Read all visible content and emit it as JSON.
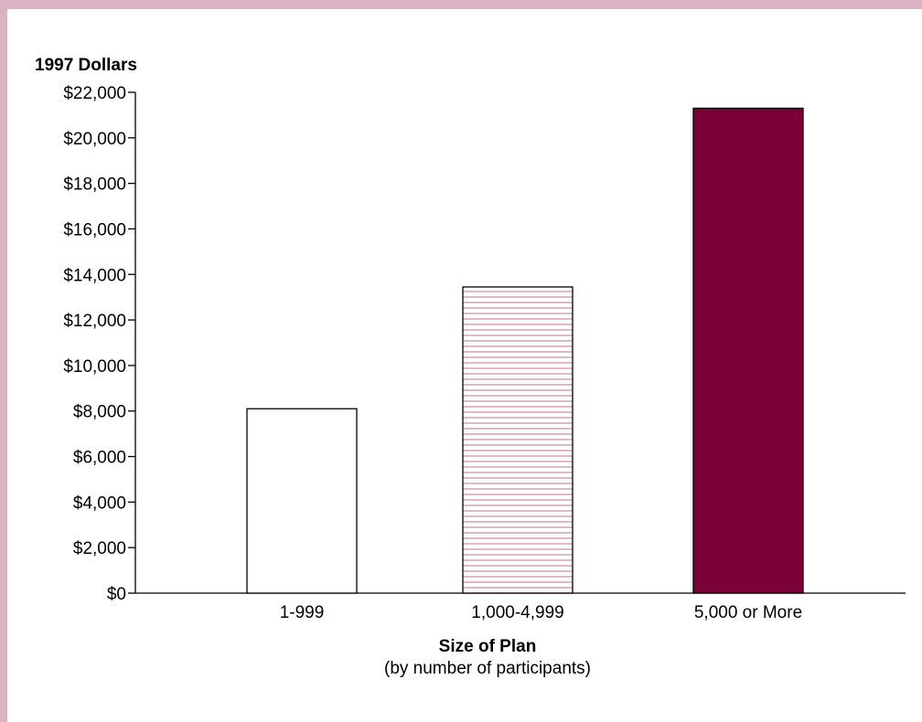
{
  "chart_data": {
    "type": "bar",
    "ylabel": "1997 Dollars",
    "xlabel": "Size of Plan",
    "xlabel_sub": "(by number of participants)",
    "categories": [
      "1-999",
      "1,000-4,999",
      "5,000 or More"
    ],
    "values": [
      8100,
      13450,
      21300
    ],
    "ylim": [
      0,
      22000
    ],
    "yticks": [
      0,
      2000,
      4000,
      6000,
      8000,
      10000,
      12000,
      14000,
      16000,
      18000,
      20000,
      22000
    ],
    "ytick_labels": [
      "$0",
      "$2,000",
      "$4,000",
      "$6,000",
      "$8,000",
      "$10,000",
      "$12,000",
      "$14,000",
      "$16,000",
      "$18,000",
      "$20,000",
      "$22,000"
    ],
    "bar_styles": [
      "white",
      "striped",
      "solid"
    ],
    "colors": {
      "accent": "#7a0038",
      "stripe": "#c98aa6",
      "frame": "#d9b3c4"
    },
    "grid": false
  }
}
